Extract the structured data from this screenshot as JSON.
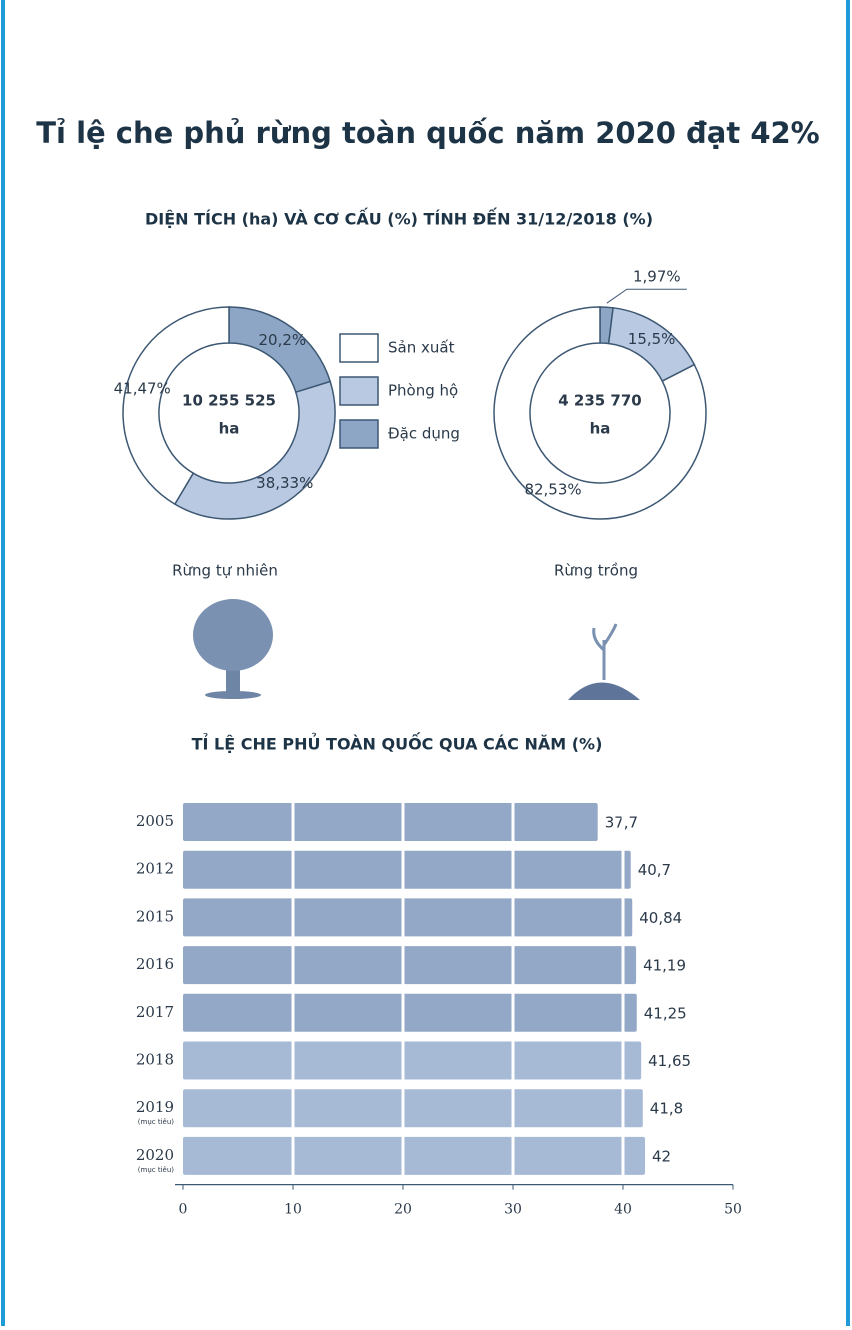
{
  "title": "Tỉ lệ che phủ rừng toàn quốc năm 2020 đạt 42%",
  "legend": {
    "names": [
      "Sản xuất",
      "Phòng hộ",
      "Đặc dụng"
    ],
    "colors": [
      "#ffffff",
      "#b9c9e2",
      "#8ea6c6"
    ]
  },
  "chart_data": [
    {
      "type": "donut",
      "title": "DIỆN TÍCH (ha) VÀ CƠ CẤU (%) TÍNH ĐẾN 31/12/2018 (%)",
      "center": [
        "10 255 525",
        "ha"
      ],
      "caption": "Rừng tự nhiên",
      "values": [
        41.47,
        38.33,
        20.2
      ],
      "value_labels": [
        "41,47%",
        "38,33%",
        "20,2%"
      ]
    },
    {
      "type": "donut",
      "center": [
        "4 235 770",
        "ha"
      ],
      "caption": "Rừng trồng",
      "values": [
        82.53,
        15.5,
        1.97
      ],
      "value_labels": [
        "82,53%",
        "15,5%",
        "1,97%"
      ]
    },
    {
      "type": "hbar",
      "title": "TỈ LỆ CHE PHỦ TOÀN QUỐC QUA CÁC NĂM (%)",
      "categories": [
        "2005",
        "2012",
        "2015",
        "2016",
        "2017",
        "2018",
        "2019",
        "2020"
      ],
      "notes": [
        null,
        null,
        null,
        null,
        null,
        null,
        "(mục tiêu)",
        "(mục tiêu)"
      ],
      "values": [
        37.7,
        40.7,
        40.84,
        41.19,
        41.25,
        41.65,
        41.8,
        42
      ],
      "value_labels": [
        "37,7",
        "40,7",
        "40,84",
        "41,19",
        "41,25",
        "41,65",
        "41,8",
        "42"
      ],
      "colors": [
        "#93a8c6",
        "#93a8c6",
        "#93a8c6",
        "#93a8c6",
        "#93a8c6",
        "#a6bad6",
        "#a6bad6",
        "#a6bad6"
      ],
      "xlim": [
        0,
        50
      ],
      "xticks": [
        0,
        10,
        20,
        30,
        40,
        50
      ],
      "grid": true
    }
  ]
}
